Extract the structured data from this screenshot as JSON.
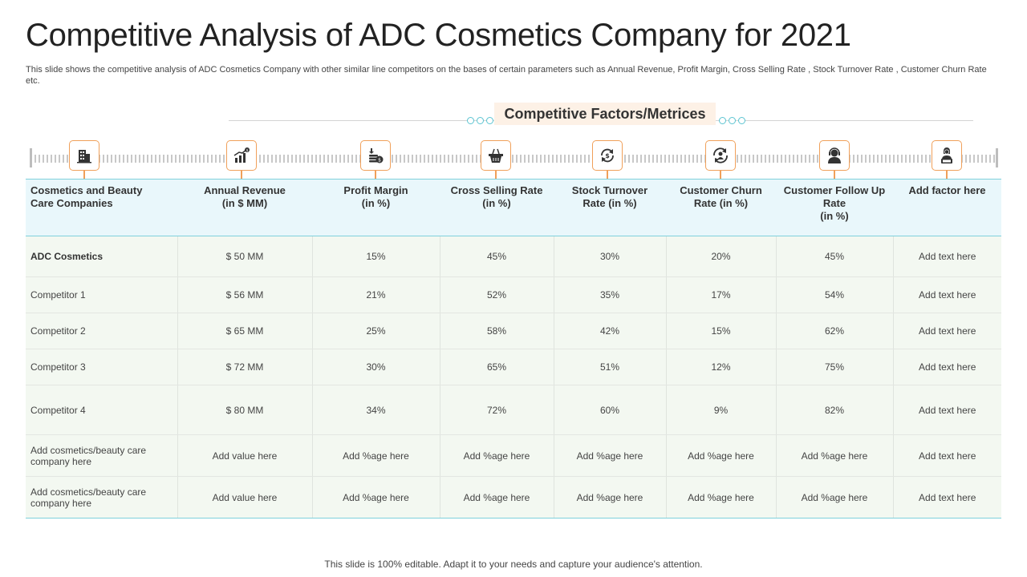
{
  "title": "Competitive Analysis of ADC Cosmetics Company for 2021",
  "subtitle": "This slide shows the competitive analysis of ADC Cosmetics Company with other similar line competitors on the bases of certain parameters such as Annual Revenue, Profit Margin, Cross Selling Rate , Stock Turnover Rate , Customer Churn Rate etc.",
  "factors_heading": "Competitive Factors/Metrices",
  "icons": [
    "building-icon",
    "growth-chart-icon",
    "coin-stack-icon",
    "shopping-basket-icon",
    "refresh-dollar-icon",
    "customer-refresh-icon",
    "support-agent-icon",
    "office-worker-icon"
  ],
  "accent_color": "#f0a05a",
  "header_color": "#e9f7fb",
  "table": {
    "headers": [
      [
        "Cosmetics  and Beauty",
        "Care Companies",
        ""
      ],
      [
        "Annual Revenue",
        "(in $ MM)",
        ""
      ],
      [
        "Profit Margin",
        "(in %)",
        ""
      ],
      [
        "Cross  Selling Rate",
        "(in %)",
        ""
      ],
      [
        "Stock Turnover",
        "Rate (in %)",
        ""
      ],
      [
        "Customer  Churn",
        "Rate (in %)",
        ""
      ],
      [
        "Customer  Follow Up",
        "Rate",
        "(in %)"
      ],
      [
        "Add factor here",
        "",
        ""
      ]
    ],
    "rows": [
      [
        "ADC Cosmetics",
        "$ 50 MM",
        "15%",
        "45%",
        "30%",
        "20%",
        "45%",
        "Add text here"
      ],
      [
        "Competitor 1",
        "$ 56 MM",
        "21%",
        "52%",
        "35%",
        "17%",
        "54%",
        "Add text here"
      ],
      [
        "Competitor 2",
        "$ 65 MM",
        "25%",
        "58%",
        "42%",
        "15%",
        "62%",
        "Add text here"
      ],
      [
        "Competitor 3",
        "$ 72 MM",
        "30%",
        "65%",
        "51%",
        "12%",
        "75%",
        "Add text here"
      ],
      [
        "Competitor 4",
        "$ 80 MM",
        "34%",
        "72%",
        "60%",
        "9%",
        "82%",
        "Add text here"
      ],
      [
        [
          "Add cosmetics/beauty care",
          "company here"
        ],
        "Add value here",
        "Add %age here",
        "Add %age here",
        "Add %age here",
        "Add %age here",
        "Add %age here",
        "Add text here"
      ],
      [
        [
          "Add cosmetics/beauty care",
          "company here"
        ],
        "Add value here",
        "Add %age here",
        "Add %age here",
        "Add %age here",
        "Add %age here",
        "Add %age here",
        "Add text here"
      ]
    ]
  },
  "footer": "This slide is 100% editable. Adapt it to your needs and capture your audience's attention."
}
